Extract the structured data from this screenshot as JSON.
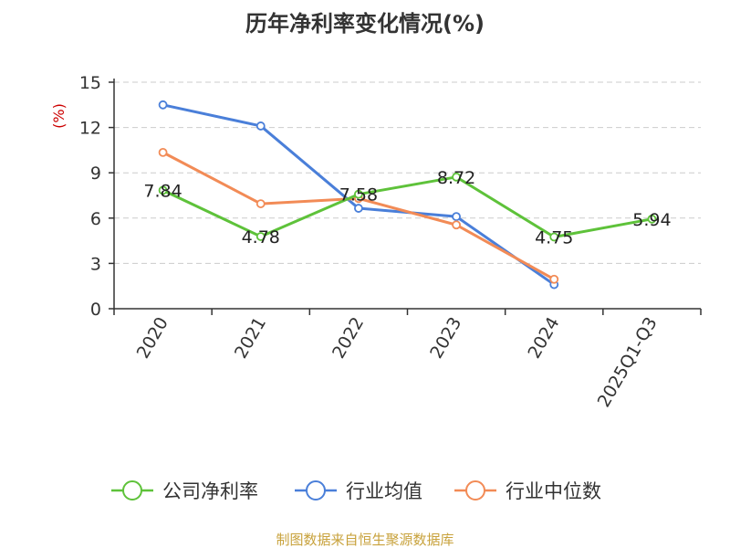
{
  "chart_data": {
    "type": "line",
    "title": "历年净利率变化情况(%)",
    "ylabel": "(%)",
    "categories": [
      "2020",
      "2021",
      "2022",
      "2023",
      "2024",
      "2025Q1-Q3"
    ],
    "ylim": [
      0,
      15
    ],
    "yticks": [
      0,
      3,
      6,
      9,
      12,
      15
    ],
    "grid": true,
    "legend_position": "bottom",
    "series": [
      {
        "name": "公司净利率",
        "color": "#5ec23a",
        "values": [
          7.84,
          4.78,
          7.58,
          8.72,
          4.75,
          5.94
        ],
        "labels": [
          "7.84",
          "4.78",
          "7.58",
          "8.72",
          "4.75",
          "5.94"
        ]
      },
      {
        "name": "行业均值",
        "color": "#4a7fd9",
        "values": [
          13.5,
          12.1,
          6.65,
          6.1,
          1.6,
          null
        ],
        "labels": []
      },
      {
        "name": "行业中位数",
        "color": "#f28b56",
        "values": [
          10.35,
          6.95,
          7.3,
          5.55,
          1.95,
          null
        ],
        "labels": []
      }
    ]
  },
  "colors": {
    "ylabel": "#cc0000",
    "source": "#c8a23c"
  },
  "source": "制图数据来自恒生聚源数据库"
}
